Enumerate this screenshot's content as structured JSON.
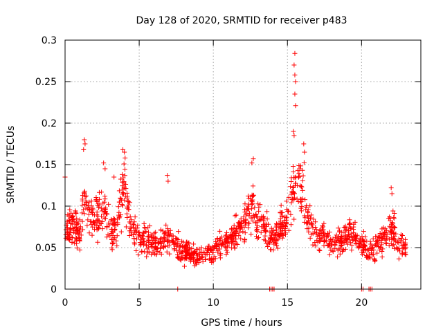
{
  "chart_data": {
    "type": "scatter",
    "title": "Day 128 of 2020, SRMTID for receiver p483",
    "xlabel": "GPS time / hours",
    "ylabel": "SRMTID / TECUs",
    "xlim": [
      0,
      24
    ],
    "ylim": [
      0,
      0.3
    ],
    "x_ticks": [
      0,
      5,
      10,
      15,
      20
    ],
    "x_tick_labels": [
      "0",
      "5",
      "10",
      "15",
      "20"
    ],
    "y_ticks": [
      0,
      0.05,
      0.1,
      0.15,
      0.2,
      0.25,
      0.3
    ],
    "y_tick_labels": [
      "0",
      "0.05",
      "0.1",
      "0.15",
      "0.2",
      "0.25",
      "0.3"
    ],
    "grid": true,
    "marker": "+",
    "series": [
      {
        "name": "SRMTID",
        "color": "#ff0000",
        "trend": [
          [
            0.0,
            0.07
          ],
          [
            0.5,
            0.08
          ],
          [
            1.0,
            0.065
          ],
          [
            1.3,
            0.12
          ],
          [
            1.6,
            0.09
          ],
          [
            2.0,
            0.085
          ],
          [
            2.6,
            0.095
          ],
          [
            3.2,
            0.065
          ],
          [
            3.6,
            0.085
          ],
          [
            4.0,
            0.13
          ],
          [
            4.4,
            0.075
          ],
          [
            5.0,
            0.065
          ],
          [
            6.0,
            0.055
          ],
          [
            7.0,
            0.06
          ],
          [
            8.0,
            0.045
          ],
          [
            9.0,
            0.04
          ],
          [
            10.0,
            0.045
          ],
          [
            11.0,
            0.06
          ],
          [
            12.0,
            0.075
          ],
          [
            12.5,
            0.1
          ],
          [
            13.0,
            0.085
          ],
          [
            14.0,
            0.06
          ],
          [
            15.0,
            0.085
          ],
          [
            15.5,
            0.13
          ],
          [
            16.0,
            0.12
          ],
          [
            16.5,
            0.075
          ],
          [
            17.0,
            0.065
          ],
          [
            18.0,
            0.055
          ],
          [
            19.0,
            0.06
          ],
          [
            19.5,
            0.07
          ],
          [
            20.0,
            0.055
          ],
          [
            20.5,
            0.045
          ],
          [
            21.0,
            0.05
          ],
          [
            21.5,
            0.06
          ],
          [
            22.0,
            0.075
          ],
          [
            22.5,
            0.055
          ],
          [
            23.0,
            0.05
          ]
        ],
        "peaks": [
          [
            0.0,
            0.135
          ],
          [
            1.3,
            0.18
          ],
          [
            1.35,
            0.175
          ],
          [
            1.25,
            0.168
          ],
          [
            2.6,
            0.152
          ],
          [
            2.7,
            0.145
          ],
          [
            3.3,
            0.135
          ],
          [
            3.9,
            0.168
          ],
          [
            4.0,
            0.165
          ],
          [
            4.05,
            0.158
          ],
          [
            6.9,
            0.137
          ],
          [
            6.95,
            0.13
          ],
          [
            12.7,
            0.157
          ],
          [
            12.6,
            0.152
          ],
          [
            15.5,
            0.284
          ],
          [
            15.45,
            0.27
          ],
          [
            15.5,
            0.258
          ],
          [
            15.55,
            0.25
          ],
          [
            15.5,
            0.235
          ],
          [
            15.55,
            0.221
          ],
          [
            15.4,
            0.19
          ],
          [
            15.45,
            0.185
          ],
          [
            16.1,
            0.175
          ],
          [
            16.15,
            0.165
          ],
          [
            22.0,
            0.122
          ],
          [
            22.05,
            0.115
          ]
        ],
        "zeros": [
          7.6,
          13.8,
          13.9,
          14.0,
          14.1,
          20.0,
          20.1,
          20.5,
          20.6,
          20.7
        ],
        "n_points": 1400
      }
    ]
  }
}
